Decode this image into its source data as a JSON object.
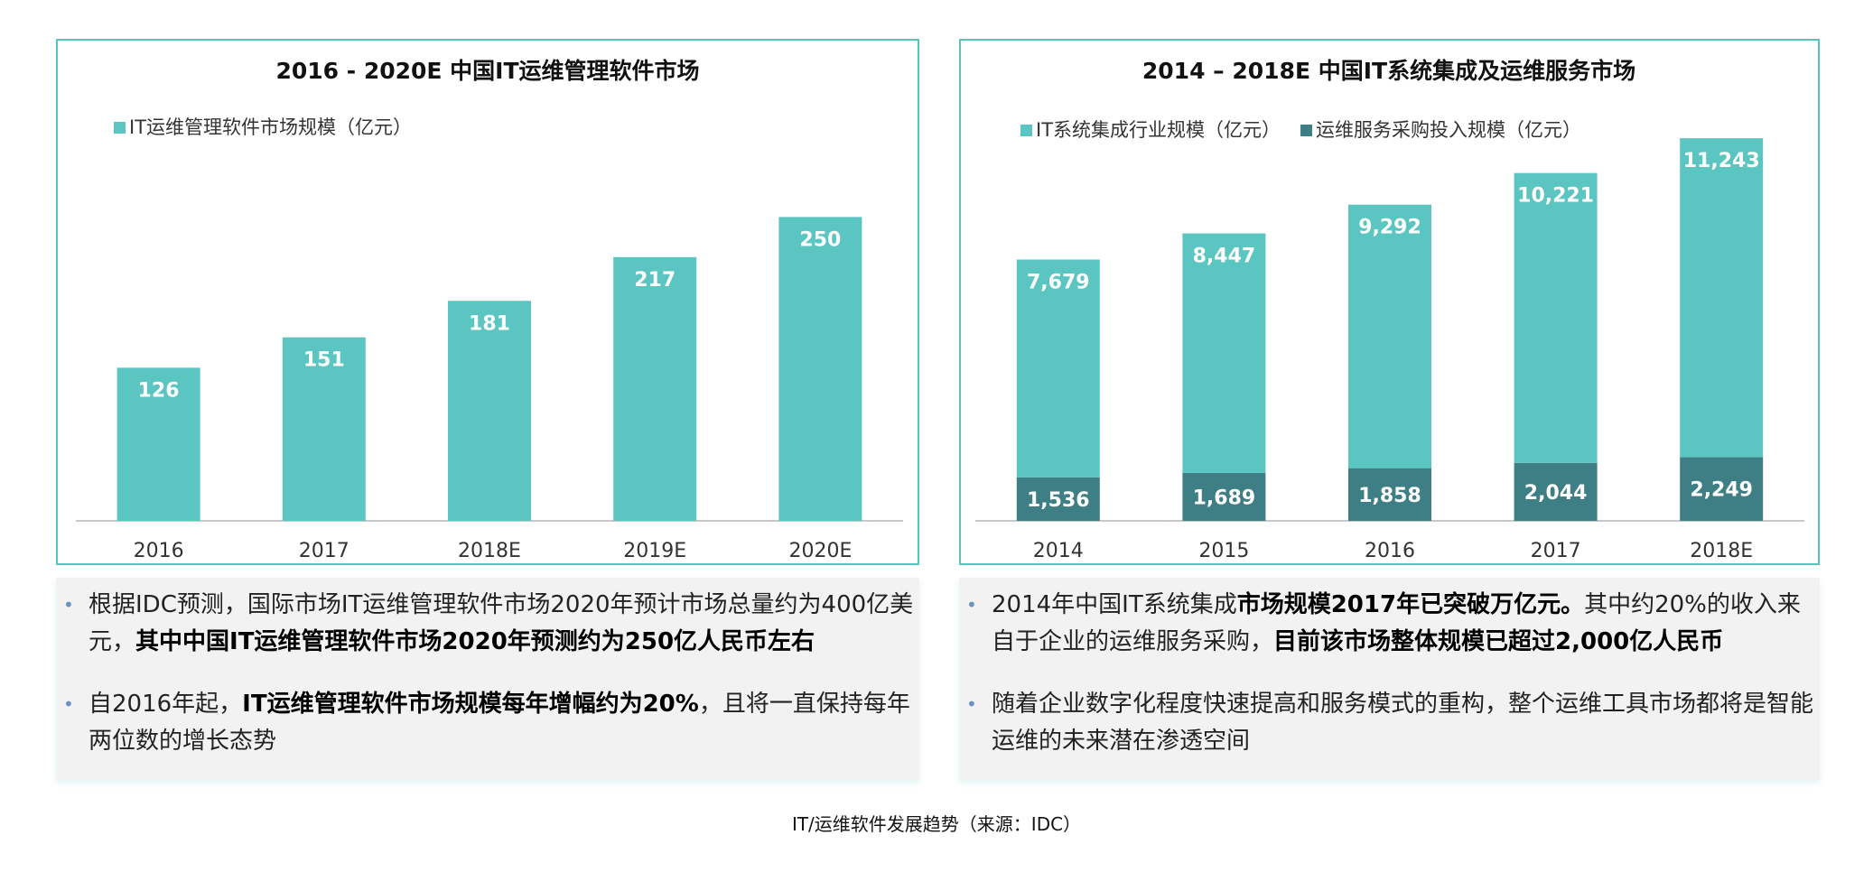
{
  "colors": {
    "teal": "#5bc6c1",
    "dark_teal": "#3d7f84",
    "border": "#56c5bd",
    "bullet": "#6b8fc6"
  },
  "chart_data": [
    {
      "type": "bar",
      "title": "2016 - 2020E 中国IT运维管理软件市场",
      "categories": [
        "2016",
        "2017",
        "2018E",
        "2019E",
        "2020E"
      ],
      "series": [
        {
          "name": "IT运维管理软件市场规模（亿元）",
          "values": [
            126,
            151,
            181,
            217,
            250
          ],
          "labels": [
            "126",
            "151",
            "181",
            "217",
            "250"
          ]
        }
      ],
      "ylim": [
        0,
        280
      ],
      "grid": false,
      "legend": "top-left"
    },
    {
      "type": "bar",
      "title": "2014 – 2018E 中国IT系统集成及运维服务市场",
      "categories": [
        "2014",
        "2015",
        "2016",
        "2017",
        "2018E"
      ],
      "series": [
        {
          "name": "IT系统集成行业规模（亿元）",
          "values": [
            7679,
            8447,
            9292,
            10221,
            11243
          ],
          "labels": [
            "7,679",
            "8,447",
            "9,292",
            "10,221",
            "11,243"
          ]
        },
        {
          "name": "运维服务采购投入规模（亿元）",
          "values": [
            1536,
            1689,
            1858,
            2044,
            2249
          ],
          "labels": [
            "1,536",
            "1,689",
            "1,858",
            "2,044",
            "2,249"
          ]
        }
      ],
      "ylim": [
        0,
        12000
      ],
      "grid": false,
      "legend": "top-center"
    }
  ],
  "notes_left": [
    {
      "text": "根据IDC预测，国际市场IT运维管理软件市场2020年预计市场总量约为400亿美元，",
      "bold": "其中中国IT运维管理软件市场2020年预测约为250亿人民币左右",
      "tail": ""
    },
    {
      "text": "自2016年起，",
      "bold": "IT运维管理软件市场规模每年增幅约为20%",
      "tail": "，且将一直保持每年两位数的增长态势"
    }
  ],
  "notes_right": [
    {
      "text": "2014年中国IT系统集成",
      "bold": "市场规模2017年已突破万亿元。",
      "tail": "其中约20%的收入来自于企业的运维服务采购，",
      "bold2": "目前该市场整体规模已超过2,000亿人民币"
    },
    {
      "text": "随着企业数字化程度快速提高和服务模式的重构，整个运维工具市场都将是智能运维的未来潜在渗透空间",
      "bold": "",
      "tail": ""
    }
  ],
  "bullet_glyph": "•",
  "caption": "IT/运维软件发展趋势（来源：IDC）"
}
